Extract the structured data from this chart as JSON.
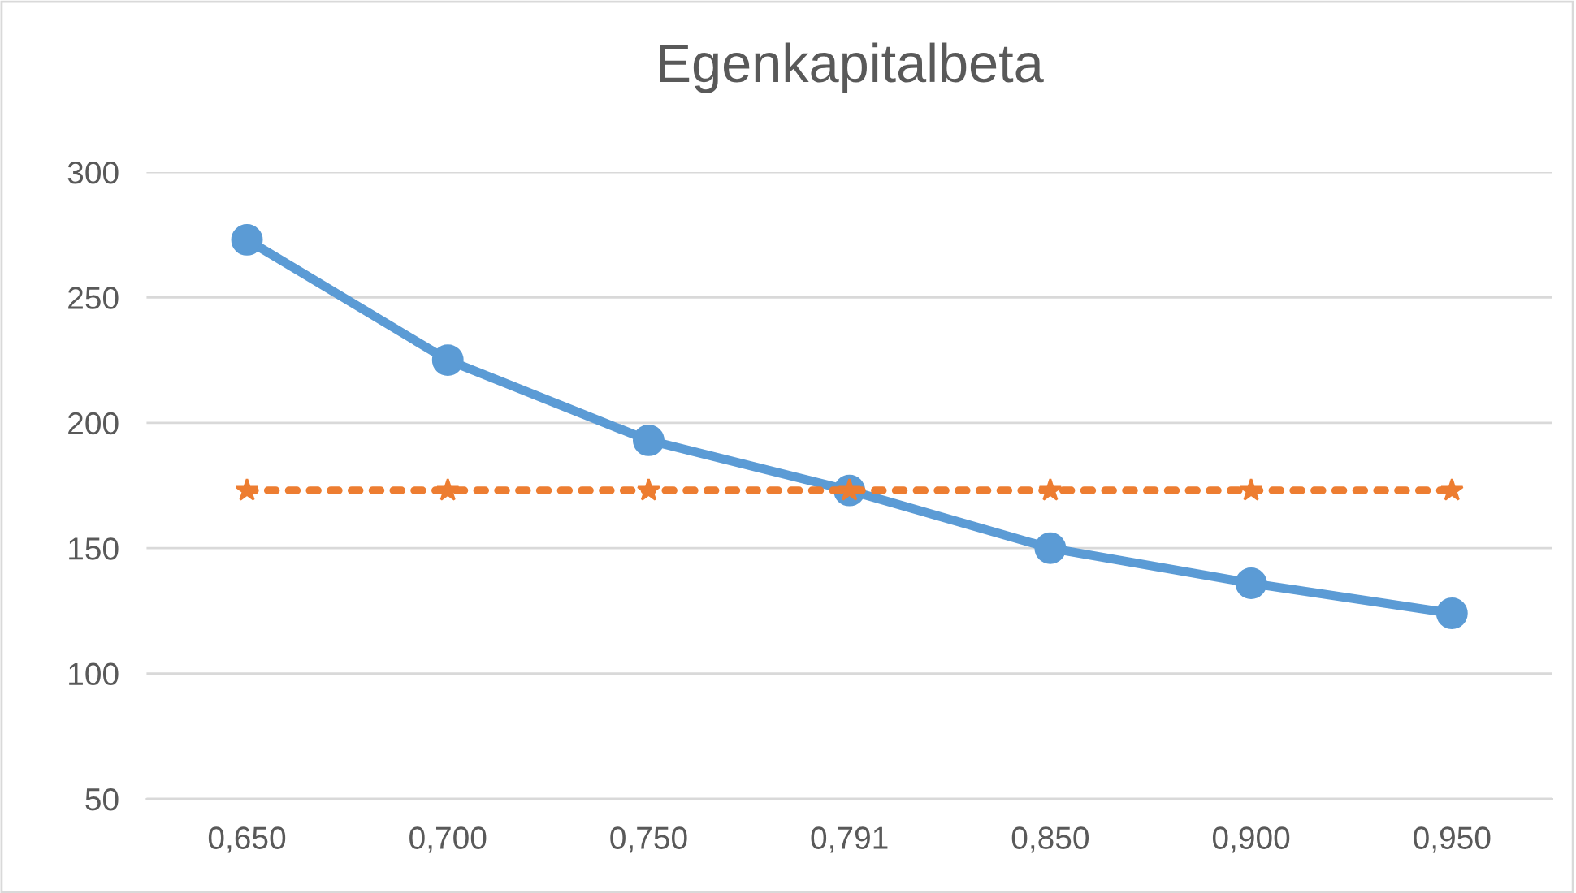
{
  "chart_data": {
    "type": "line",
    "title": "Egenkapitalbeta",
    "categories": [
      "0,650",
      "0,700",
      "0,750",
      "0,791",
      "0,850",
      "0,900",
      "0,950"
    ],
    "series": [
      {
        "color": "#5b9bd5",
        "values": [
          273,
          225,
          193,
          173,
          150,
          136,
          124
        ],
        "marker": "circle",
        "line_style": "solid"
      },
      {
        "color": "#ed7d31",
        "values": [
          173,
          173,
          173,
          173,
          173,
          173,
          173
        ],
        "marker": "star",
        "line_style": "dotted"
      }
    ],
    "ylim": [
      50,
      300
    ],
    "yticks": [
      50,
      100,
      150,
      200,
      250,
      300
    ],
    "grid": "y",
    "legend": false
  }
}
